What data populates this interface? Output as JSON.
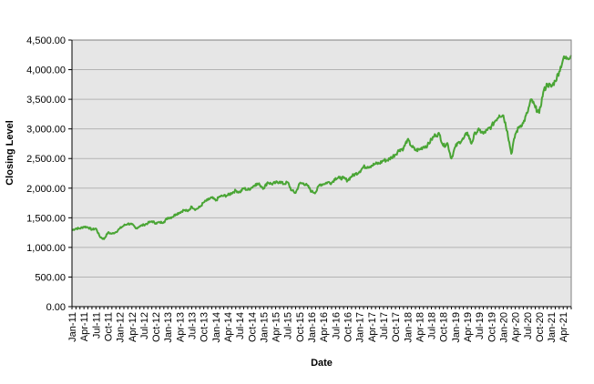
{
  "chart_data": {
    "type": "line",
    "title": "",
    "xlabel": "Date",
    "ylabel": "Closing  Level",
    "ylim": [
      0,
      4500
    ],
    "y_ticks": [
      0,
      500,
      1000,
      1500,
      2000,
      2500,
      3000,
      3500,
      4000,
      4500
    ],
    "y_tick_labels": [
      "0.00",
      "500.00",
      "1,000.00",
      "1,500.00",
      "2,000.00",
      "2,500.00",
      "3,000.00",
      "3,500.00",
      "4,000.00",
      "4,500.00"
    ],
    "x_range": [
      "2011-01",
      "2021-06"
    ],
    "x_tick_labels": [
      "Jan-11",
      "Apr-11",
      "Jul-11",
      "Oct-11",
      "Jan-12",
      "Apr-12",
      "Jul-12",
      "Oct-12",
      "Jan-13",
      "Apr-13",
      "Jul-13",
      "Oct-13",
      "Jan-14",
      "Apr-14",
      "Jul-14",
      "Oct-14",
      "Jan-15",
      "Apr-15",
      "Jul-15",
      "Oct-15",
      "Jan-16",
      "Apr-16",
      "Jul-16",
      "Oct-16",
      "Jan-17",
      "Apr-17",
      "Jul-17",
      "Oct-17",
      "Jan-18",
      "Apr-18",
      "Jul-18",
      "Oct-18",
      "Jan-19",
      "Apr-19",
      "Jul-19",
      "Oct-19",
      "Jan-20",
      "Apr-20",
      "Jul-20",
      "Oct-20",
      "Jan-21",
      "Apr-21"
    ],
    "grid": "horizontal",
    "legend": "none",
    "colors": {
      "line": "#4aa535",
      "plot_background": "#e6e6e6",
      "gridline": "#b3b3b3",
      "axis": "#000000"
    },
    "series": [
      {
        "x": [
          "2011-01",
          "2011-02",
          "2011-03",
          "2011-04",
          "2011-05",
          "2011-06",
          "2011-07",
          "2011-08",
          "2011-09",
          "2011-10",
          "2011-11",
          "2011-12",
          "2012-01",
          "2012-02",
          "2012-03",
          "2012-04",
          "2012-05",
          "2012-06",
          "2012-07",
          "2012-08",
          "2012-09",
          "2012-10",
          "2012-11",
          "2012-12",
          "2013-01",
          "2013-02",
          "2013-03",
          "2013-04",
          "2013-05",
          "2013-06",
          "2013-07",
          "2013-08",
          "2013-09",
          "2013-10",
          "2013-11",
          "2013-12",
          "2014-01",
          "2014-02",
          "2014-03",
          "2014-04",
          "2014-05",
          "2014-06",
          "2014-07",
          "2014-08",
          "2014-09",
          "2014-10",
          "2014-11",
          "2014-12",
          "2015-01",
          "2015-02",
          "2015-03",
          "2015-04",
          "2015-05",
          "2015-06",
          "2015-07",
          "2015-08",
          "2015-09",
          "2015-10",
          "2015-11",
          "2015-12",
          "2016-01",
          "2016-02",
          "2016-03",
          "2016-04",
          "2016-05",
          "2016-06",
          "2016-07",
          "2016-08",
          "2016-09",
          "2016-10",
          "2016-11",
          "2016-12",
          "2017-01",
          "2017-02",
          "2017-03",
          "2017-04",
          "2017-05",
          "2017-06",
          "2017-07",
          "2017-08",
          "2017-09",
          "2017-10",
          "2017-11",
          "2017-12",
          "2018-01",
          "2018-02",
          "2018-03",
          "2018-04",
          "2018-05",
          "2018-06",
          "2018-07",
          "2018-08",
          "2018-09",
          "2018-10",
          "2018-11",
          "2018-12",
          "2019-01",
          "2019-02",
          "2019-03",
          "2019-04",
          "2019-05",
          "2019-06",
          "2019-07",
          "2019-08",
          "2019-09",
          "2019-10",
          "2019-11",
          "2019-12",
          "2020-01",
          "2020-02",
          "2020-03",
          "2020-04",
          "2020-05",
          "2020-06",
          "2020-07",
          "2020-08",
          "2020-09",
          "2020-10",
          "2020-11",
          "2020-12",
          "2021-01",
          "2021-02",
          "2021-03",
          "2021-04",
          "2021-05",
          "2021-06"
        ],
        "y": [
          1290,
          1320,
          1320,
          1350,
          1340,
          1300,
          1320,
          1180,
          1140,
          1250,
          1230,
          1260,
          1320,
          1370,
          1400,
          1390,
          1320,
          1360,
          1380,
          1410,
          1440,
          1410,
          1420,
          1430,
          1500,
          1510,
          1560,
          1590,
          1630,
          1610,
          1690,
          1640,
          1680,
          1760,
          1800,
          1840,
          1790,
          1860,
          1870,
          1880,
          1920,
          1960,
          1930,
          2000,
          1970,
          2010,
          2070,
          2060,
          2000,
          2100,
          2070,
          2090,
          2110,
          2070,
          2100,
          1960,
          1920,
          2080,
          2080,
          2040,
          1940,
          1930,
          2060,
          2070,
          2100,
          2090,
          2170,
          2170,
          2170,
          2130,
          2200,
          2240,
          2280,
          2360,
          2360,
          2380,
          2410,
          2420,
          2470,
          2470,
          2520,
          2570,
          2650,
          2670,
          2820,
          2710,
          2640,
          2650,
          2700,
          2720,
          2820,
          2900,
          2910,
          2710,
          2760,
          2500,
          2700,
          2780,
          2830,
          2940,
          2750,
          2940,
          2980,
          2920,
          2980,
          3040,
          3140,
          3230,
          3230,
          2960,
          2580,
          2910,
          3040,
          3100,
          3270,
          3500,
          3360,
          3270,
          3620,
          3760,
          3710,
          3810,
          3970,
          4180,
          4200,
          4240
        ]
      }
    ]
  }
}
